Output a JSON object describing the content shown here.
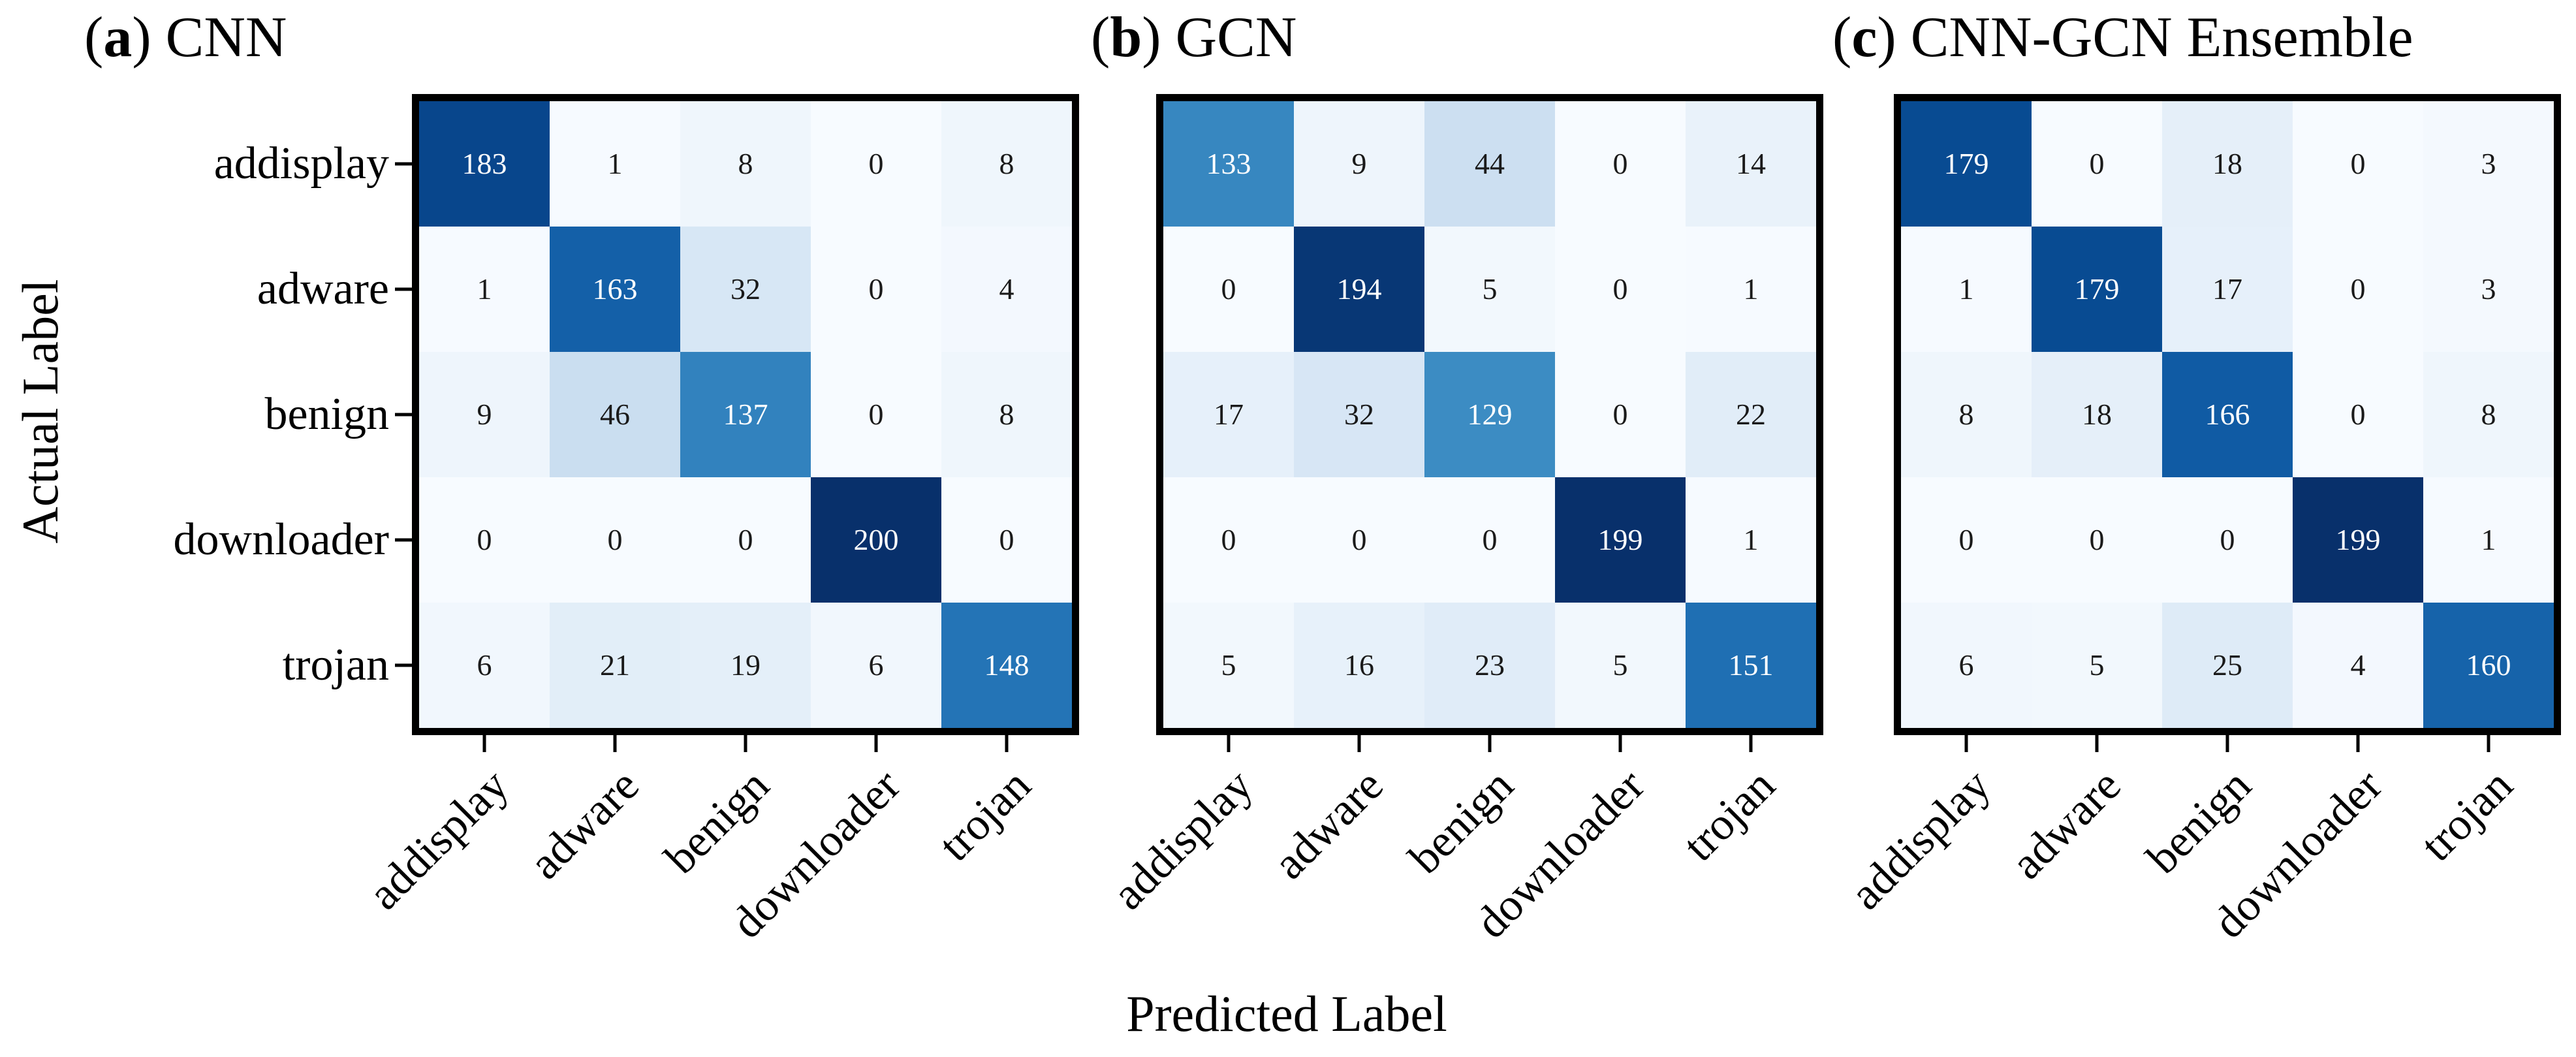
{
  "figure": {
    "xlabel": "Predicted Label",
    "ylabel": "Actual Label",
    "paren_open": "(",
    "paren_close": ")"
  },
  "colors": {
    "colormap_blues": [
      "#f7fbff",
      "#deebf7",
      "#c6dbef",
      "#9ecae1",
      "#6baed6",
      "#4292c6",
      "#2171b5",
      "#08519c",
      "#08306b"
    ],
    "cell_text_dark": "#1a1a1a",
    "cell_text_light": "#ffffff",
    "spine": "#000000",
    "background": "#ffffff"
  },
  "chart_data": [
    {
      "type": "heatmap",
      "panel_letter": "a",
      "title": "CNN",
      "xlabel": "Predicted Label",
      "ylabel": "Actual Label",
      "categories": [
        "addisplay",
        "adware",
        "benign",
        "downloader",
        "trojan"
      ],
      "rows": [
        [
          183,
          1,
          8,
          0,
          8
        ],
        [
          1,
          163,
          32,
          0,
          4
        ],
        [
          9,
          46,
          137,
          0,
          8
        ],
        [
          0,
          0,
          0,
          200,
          0
        ],
        [
          6,
          21,
          19,
          6,
          148
        ]
      ],
      "vmin": 0,
      "colormap": "Blues",
      "grid": false,
      "legend": "none"
    },
    {
      "type": "heatmap",
      "panel_letter": "b",
      "title": "GCN",
      "xlabel": "Predicted Label",
      "ylabel": "Actual Label",
      "categories": [
        "addisplay",
        "adware",
        "benign",
        "downloader",
        "trojan"
      ],
      "rows": [
        [
          133,
          9,
          44,
          0,
          14
        ],
        [
          0,
          194,
          5,
          0,
          1
        ],
        [
          17,
          32,
          129,
          0,
          22
        ],
        [
          0,
          0,
          0,
          199,
          1
        ],
        [
          5,
          16,
          23,
          5,
          151
        ]
      ],
      "vmin": 0,
      "colormap": "Blues",
      "grid": false,
      "legend": "none"
    },
    {
      "type": "heatmap",
      "panel_letter": "c",
      "title": "CNN-GCN Ensemble",
      "xlabel": "Predicted Label",
      "ylabel": "Actual Label",
      "categories": [
        "addisplay",
        "adware",
        "benign",
        "downloader",
        "trojan"
      ],
      "rows": [
        [
          179,
          0,
          18,
          0,
          3
        ],
        [
          1,
          179,
          17,
          0,
          3
        ],
        [
          8,
          18,
          166,
          0,
          8
        ],
        [
          0,
          0,
          0,
          199,
          1
        ],
        [
          6,
          5,
          25,
          4,
          160
        ]
      ],
      "vmin": 0,
      "colormap": "Blues",
      "grid": false,
      "legend": "none"
    }
  ]
}
